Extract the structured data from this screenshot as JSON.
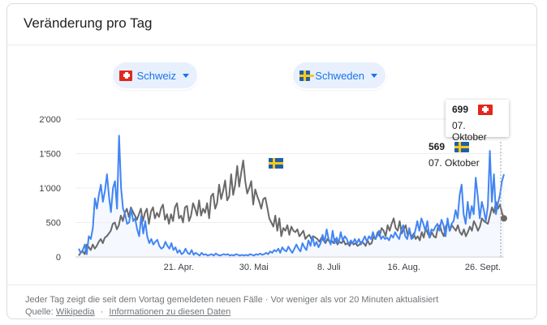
{
  "card": {
    "title": "Veränderung pro Tag"
  },
  "chips": [
    {
      "country": "Schweiz",
      "flag": "ch-flag-icon"
    },
    {
      "country": "Schweden",
      "flag": "se-flag-icon"
    }
  ],
  "tooltip": {
    "value": "699",
    "date": "07. Oktober"
  },
  "se_label": {
    "value": "569",
    "date": "07. Oktober"
  },
  "footer": {
    "line1": "Jeder Tag zeigt die seit dem Vortag gemeldeten neuen Fälle · Vor weniger als vor 20 Minuten aktualisiert",
    "source_prefix": "Quelle:",
    "source_link": "Wikipedia",
    "info_link": "Informationen zu diesen Daten"
  },
  "colors": {
    "schweiz": "#4285f4",
    "schweden": "#696969"
  },
  "chart_data": {
    "type": "line",
    "title": "Veränderung pro Tag",
    "xlabel": "",
    "ylabel": "",
    "ylim": [
      0,
      2000
    ],
    "yticks": [
      "0",
      "500",
      "1'000",
      "1'500",
      "2'000"
    ],
    "xticks": [
      {
        "label": "21. Apr.",
        "day": 52
      },
      {
        "label": "30. Mai",
        "day": 91
      },
      {
        "label": "8. Juli",
        "day": 130
      },
      {
        "label": "16. Aug.",
        "day": 169
      },
      {
        "label": "26. Sept.",
        "day": 210
      }
    ],
    "x_start_day": 0,
    "x_end_day": 221,
    "series": [
      {
        "name": "Schweiz",
        "color": "#4285f4",
        "values": [
          120,
          60,
          100,
          180,
          40,
          300,
          260,
          420,
          850,
          700,
          900,
          1050,
          800,
          960,
          1200,
          880,
          650,
          1000,
          1100,
          700,
          1760,
          1000,
          700,
          620,
          480,
          500,
          700,
          520,
          560,
          400,
          300,
          600,
          340,
          520,
          300,
          200,
          260,
          180,
          220,
          250,
          160,
          120,
          140,
          220,
          160,
          120,
          200,
          100,
          140,
          60,
          100,
          40,
          60,
          120,
          60,
          40,
          100,
          30,
          60,
          40,
          20,
          60,
          30,
          40,
          20,
          30,
          40,
          20,
          50,
          30,
          20,
          30,
          40,
          30,
          40,
          20,
          30,
          20,
          40,
          30,
          20,
          30,
          20,
          30,
          20,
          40,
          30,
          20,
          40,
          30,
          50,
          30,
          40,
          60,
          40,
          80,
          60,
          100,
          80,
          120,
          60,
          140,
          100,
          80,
          150,
          100,
          60,
          120,
          180,
          120,
          80,
          200,
          140,
          100,
          240,
          160,
          300,
          160,
          220,
          140,
          200,
          320,
          220,
          400,
          260,
          180,
          380,
          200,
          280,
          200,
          360,
          240,
          300,
          260,
          180,
          240,
          200,
          260,
          200,
          260,
          180,
          240,
          300,
          220,
          300,
          260,
          360,
          260,
          300,
          380,
          260,
          300,
          260,
          280,
          240,
          320,
          280,
          360,
          300,
          260,
          380,
          460,
          300,
          260,
          420,
          260,
          280,
          380,
          520,
          380,
          560,
          480,
          380,
          520,
          280,
          400,
          380,
          440,
          480,
          380,
          540,
          460,
          300,
          560,
          380,
          480,
          520,
          680,
          560,
          900,
          1050,
          620,
          480,
          800,
          560,
          740,
          620,
          1150,
          880,
          560,
          800,
          680,
          520,
          740,
          1540,
          800,
          1200,
          620,
          780,
          900,
          1100,
          1200
        ]
      },
      {
        "name": "Schweden",
        "color": "#696969",
        "values": [
          20,
          60,
          80,
          40,
          180,
          140,
          100,
          180,
          120,
          160,
          220,
          260,
          200,
          280,
          300,
          340,
          380,
          480,
          500,
          400,
          460,
          600,
          520,
          640,
          700,
          580,
          720,
          660,
          600,
          540,
          620,
          700,
          520,
          640,
          700,
          480,
          660,
          720,
          560,
          640,
          580,
          700,
          760,
          540,
          620,
          480,
          620,
          520,
          720,
          780,
          560,
          600,
          500,
          720,
          740,
          520,
          600,
          780,
          700,
          600,
          820,
          600,
          700,
          640,
          780,
          560,
          880,
          920,
          700,
          780,
          1050,
          840,
          960,
          1110,
          820,
          880,
          1200,
          900,
          1050,
          1320,
          1020,
          1220,
          1400,
          1100,
          920,
          1000,
          1100,
          760,
          980,
          880,
          800,
          700,
          840,
          860,
          720,
          560,
          500,
          440,
          600,
          380,
          560,
          300,
          420,
          380,
          460,
          320,
          440,
          380,
          360,
          400,
          300,
          340,
          380,
          260,
          300,
          320,
          260,
          300,
          280,
          260,
          220,
          280,
          240,
          200,
          260,
          220,
          240,
          200,
          260,
          180,
          220,
          200,
          240,
          180,
          200,
          160,
          220,
          180,
          200,
          160,
          180,
          220,
          200,
          160,
          240,
          180,
          200,
          300,
          260,
          360,
          300,
          420,
          380,
          300,
          460,
          380,
          480,
          560,
          420,
          380,
          520,
          340,
          400,
          460,
          300,
          380,
          280,
          340,
          260,
          300,
          240,
          360,
          280,
          420,
          340,
          280,
          360,
          300,
          280,
          420,
          460,
          360,
          300,
          440,
          500,
          380,
          460,
          420,
          380,
          460,
          360,
          320,
          400,
          300,
          360,
          440,
          380,
          520,
          460,
          380,
          440,
          560,
          520,
          500,
          480,
          600,
          720,
          640,
          800,
          700,
          760,
          640,
          560
        ]
      }
    ]
  }
}
